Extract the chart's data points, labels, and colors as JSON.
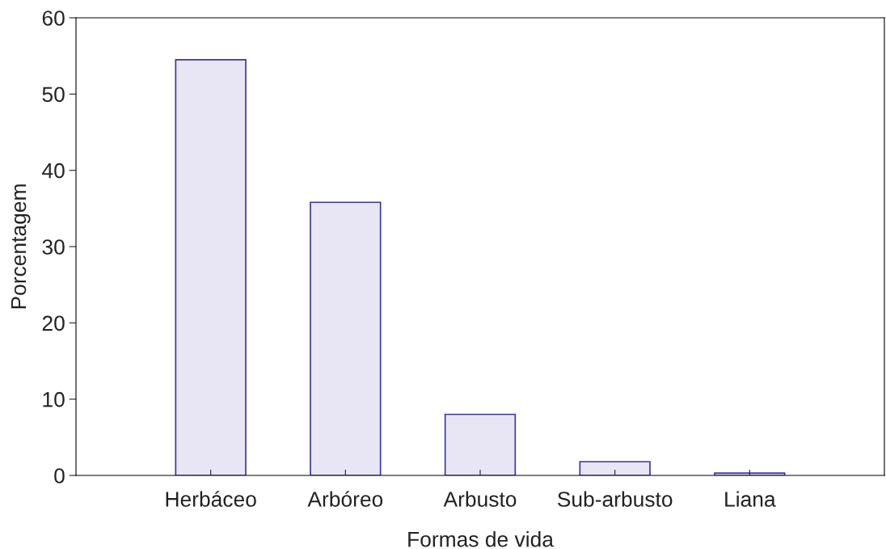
{
  "chart_data": {
    "type": "bar",
    "xlabel": "Formas de vida",
    "ylabel": "Porcentagem",
    "categories": [
      "Herbáceo",
      "Arbóreo",
      "Arbusto",
      "Sub-arbusto",
      "Liana"
    ],
    "values": [
      54.5,
      35.8,
      8.0,
      1.8,
      0.3
    ],
    "color": "#e8e6f4",
    "ylim": [
      0,
      60
    ],
    "yticks": [
      0,
      10,
      20,
      30,
      40,
      50,
      60
    ],
    "grid": false
  }
}
